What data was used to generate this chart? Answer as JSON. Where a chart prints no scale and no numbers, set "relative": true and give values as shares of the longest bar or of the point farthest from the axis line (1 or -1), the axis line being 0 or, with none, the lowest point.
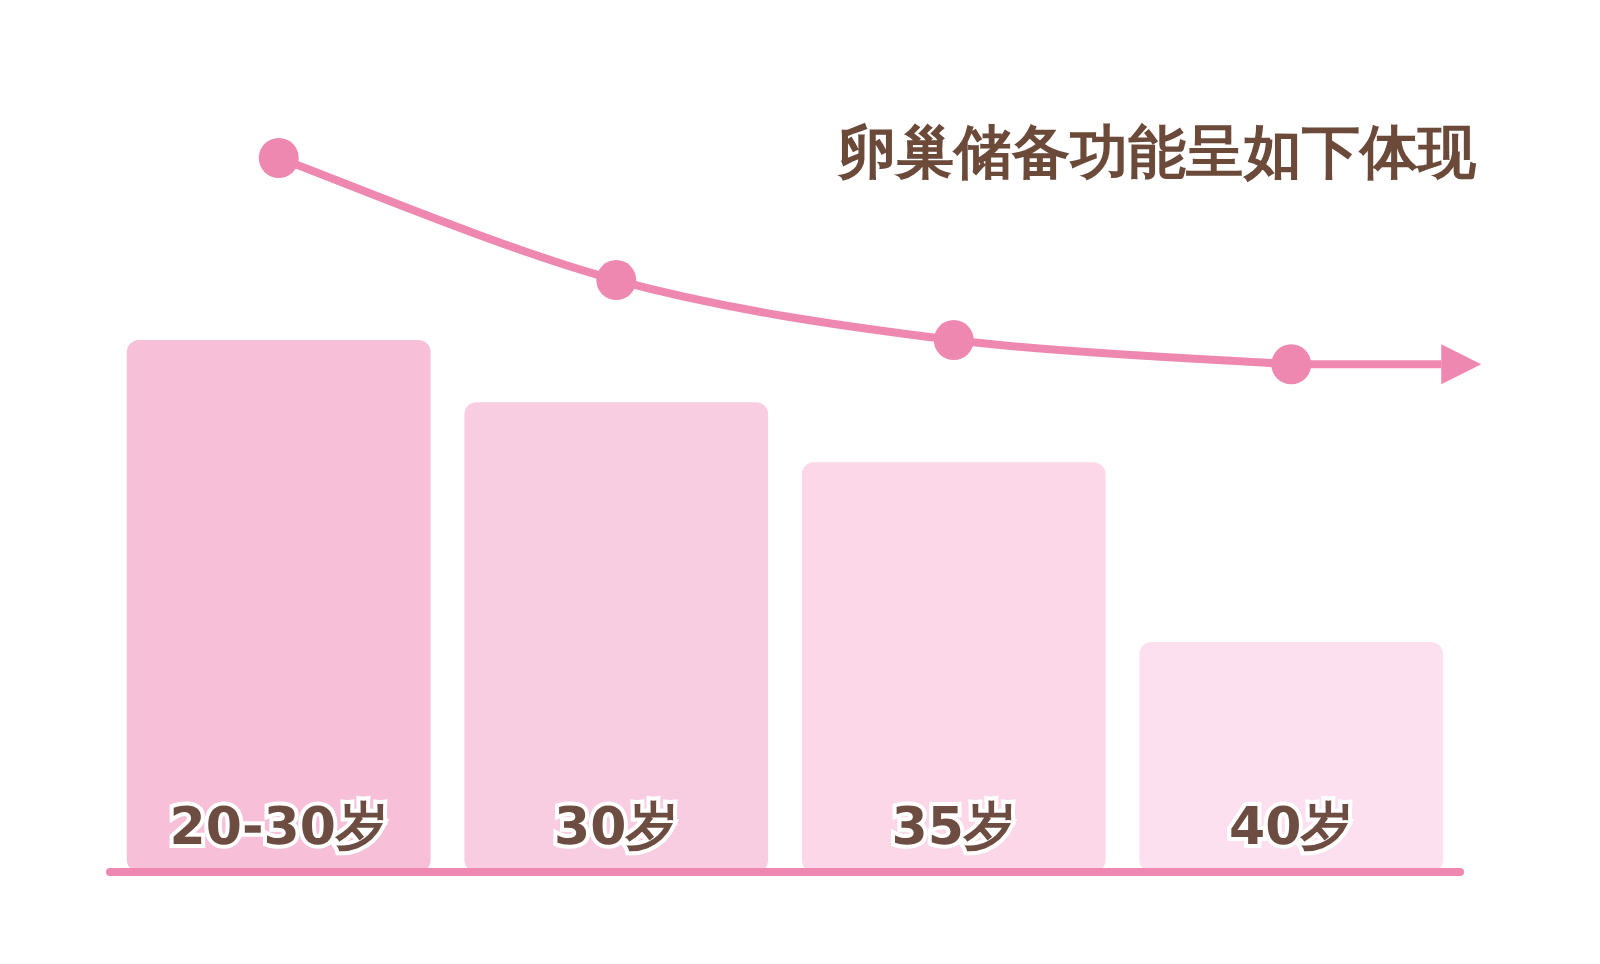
{
  "chart_data": {
    "type": "bar",
    "title": "卵巢储备功能呈如下体现",
    "relative": true,
    "categories": [
      "20-30岁",
      "30岁",
      "35岁",
      "40岁"
    ],
    "series": [
      {
        "colors": [
          "#f7c0d8",
          "#f9cde1",
          "#fbd7e8",
          "#fce0ef"
        ],
        "values": [
          0.745,
          0.658,
          0.574,
          0.322
        ]
      },
      {
        "type": "line",
        "color": "#ee88b0",
        "marker": "circle",
        "values": [
          1,
          0.829,
          0.745,
          0.711
        ]
      }
    ]
  }
}
